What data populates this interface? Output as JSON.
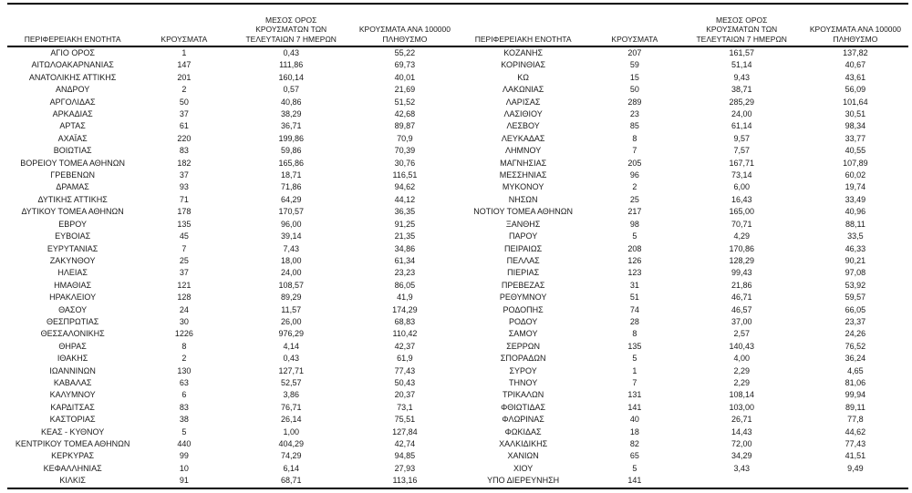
{
  "page": {
    "background": "#ffffff",
    "text_color": "#1a1a1a",
    "border_color": "#000000"
  },
  "table": {
    "headers": {
      "region": "ΠΕΡΙΦΕΡΕΙΑΚΗ ΕΝΟΤΗΤΑ",
      "cases": "ΚΡΟΥΣΜΑΤΑ",
      "avg7_full": "ΜΕΣΟΣ ΟΡΟΣ ΚΡΟΥΣΜΑΤΩΝ ΤΩΝ ΤΕΛΕΥΤΑΙΩΝ 7 ΗΜΕΡΩΝ",
      "avg7_lines": [
        "ΜΕΣΟΣ ΟΡΟΣ",
        "ΚΡΟΥΣΜΑΤΩΝ ΤΩΝ",
        "ΤΕΛΕΥΤΑΙΩΝ 7 ΗΜΕΡΩΝ"
      ],
      "per100k_full": "ΚΡΟΥΣΜΑΤΑ ΑΝΑ 100000 ΠΛΗΘΥΣΜΟ",
      "per100k_lines": [
        "ΚΡΟΥΣΜΑΤΑ ΑΝΑ 100000",
        "ΠΛΗΘΥΣΜΟ"
      ]
    },
    "left_rows": [
      [
        "ΑΓΙΟ ΟΡΟΣ",
        "1",
        "0,43",
        "55,22"
      ],
      [
        "ΑΙΤΩΛΟΑΚΑΡΝΑΝΙΑΣ",
        "147",
        "111,86",
        "69,73"
      ],
      [
        "ΑΝΑΤΟΛΙΚΗΣ ΑΤΤΙΚΗΣ",
        "201",
        "160,14",
        "40,01"
      ],
      [
        "ΑΝΔΡΟΥ",
        "2",
        "0,57",
        "21,69"
      ],
      [
        "ΑΡΓΟΛΙΔΑΣ",
        "50",
        "40,86",
        "51,52"
      ],
      [
        "ΑΡΚΑΔΙΑΣ",
        "37",
        "38,29",
        "42,68"
      ],
      [
        "ΑΡΤΑΣ",
        "61",
        "36,71",
        "89,87"
      ],
      [
        "ΑΧΑΪΑΣ",
        "220",
        "199,86",
        "70,9"
      ],
      [
        "ΒΟΙΩΤΙΑΣ",
        "83",
        "59,86",
        "70,39"
      ],
      [
        "ΒΟΡΕΙΟΥ ΤΟΜΕΑ ΑΘΗΝΩΝ",
        "182",
        "165,86",
        "30,76"
      ],
      [
        "ΓΡΕΒΕΝΩΝ",
        "37",
        "18,71",
        "116,51"
      ],
      [
        "ΔΡΑΜΑΣ",
        "93",
        "71,86",
        "94,62"
      ],
      [
        "ΔΥΤΙΚΗΣ ΑΤΤΙΚΗΣ",
        "71",
        "64,29",
        "44,12"
      ],
      [
        "ΔΥΤΙΚΟΥ ΤΟΜΕΑ ΑΘΗΝΩΝ",
        "178",
        "170,57",
        "36,35"
      ],
      [
        "ΕΒΡΟΥ",
        "135",
        "96,00",
        "91,25"
      ],
      [
        "ΕΥΒΟΙΑΣ",
        "45",
        "39,14",
        "21,35"
      ],
      [
        "ΕΥΡΥΤΑΝΙΑΣ",
        "7",
        "7,43",
        "34,86"
      ],
      [
        "ΖΑΚΥΝΘΟΥ",
        "25",
        "18,00",
        "61,34"
      ],
      [
        "ΗΛΕΙΑΣ",
        "37",
        "24,00",
        "23,23"
      ],
      [
        "ΗΜΑΘΙΑΣ",
        "121",
        "108,57",
        "86,05"
      ],
      [
        "ΗΡΑΚΛΕΙΟΥ",
        "128",
        "89,29",
        "41,9"
      ],
      [
        "ΘΑΣΟΥ",
        "24",
        "11,57",
        "174,29"
      ],
      [
        "ΘΕΣΠΡΩΤΙΑΣ",
        "30",
        "26,00",
        "68,83"
      ],
      [
        "ΘΕΣΣΑΛΟΝΙΚΗΣ",
        "1226",
        "976,29",
        "110,42"
      ],
      [
        "ΘΗΡΑΣ",
        "8",
        "4,14",
        "42,37"
      ],
      [
        "ΙΘΑΚΗΣ",
        "2",
        "0,43",
        "61,9"
      ],
      [
        "ΙΩΑΝΝΙΝΩΝ",
        "130",
        "127,71",
        "77,43"
      ],
      [
        "ΚΑΒΑΛΑΣ",
        "63",
        "52,57",
        "50,43"
      ],
      [
        "ΚΑΛΥΜΝΟΥ",
        "6",
        "3,86",
        "20,37"
      ],
      [
        "ΚΑΡΔΙΤΣΑΣ",
        "83",
        "76,71",
        "73,1"
      ],
      [
        "ΚΑΣΤΟΡΙΑΣ",
        "38",
        "26,14",
        "75,51"
      ],
      [
        "ΚΕΑΣ - ΚΥΘΝΟΥ",
        "5",
        "1,00",
        "127,84"
      ],
      [
        "ΚΕΝΤΡΙΚΟΥ ΤΟΜΕΑ ΑΘΗΝΩΝ",
        "440",
        "404,29",
        "42,74"
      ],
      [
        "ΚΕΡΚΥΡΑΣ",
        "99",
        "74,29",
        "94,85"
      ],
      [
        "ΚΕΦΑΛΛΗΝΙΑΣ",
        "10",
        "6,14",
        "27,93"
      ],
      [
        "ΚΙΛΚΙΣ",
        "91",
        "68,71",
        "113,16"
      ]
    ],
    "right_rows": [
      [
        "ΚΟΖΑΝΗΣ",
        "207",
        "161,57",
        "137,82"
      ],
      [
        "ΚΟΡΙΝΘΙΑΣ",
        "59",
        "51,14",
        "40,67"
      ],
      [
        "ΚΩ",
        "15",
        "9,43",
        "43,61"
      ],
      [
        "ΛΑΚΩΝΙΑΣ",
        "50",
        "38,71",
        "56,09"
      ],
      [
        "ΛΑΡΙΣΑΣ",
        "289",
        "285,29",
        "101,64"
      ],
      [
        "ΛΑΣΙΘΙΟΥ",
        "23",
        "24,00",
        "30,51"
      ],
      [
        "ΛΕΣΒΟΥ",
        "85",
        "61,14",
        "98,34"
      ],
      [
        "ΛΕΥΚΑΔΑΣ",
        "8",
        "9,57",
        "33,77"
      ],
      [
        "ΛΗΜΝΟΥ",
        "7",
        "7,57",
        "40,55"
      ],
      [
        "ΜΑΓΝΗΣΙΑΣ",
        "205",
        "167,71",
        "107,89"
      ],
      [
        "ΜΕΣΣΗΝΙΑΣ",
        "96",
        "73,14",
        "60,02"
      ],
      [
        "ΜΥΚΟΝΟΥ",
        "2",
        "6,00",
        "19,74"
      ],
      [
        "ΝΗΣΩΝ",
        "25",
        "16,43",
        "33,49"
      ],
      [
        "ΝΟΤΙΟΥ ΤΟΜΕΑ ΑΘΗΝΩΝ",
        "217",
        "165,00",
        "40,96"
      ],
      [
        "ΞΑΝΘΗΣ",
        "98",
        "70,71",
        "88,11"
      ],
      [
        "ΠΑΡΟΥ",
        "5",
        "4,29",
        "33,5"
      ],
      [
        "ΠΕΙΡΑΙΩΣ",
        "208",
        "170,86",
        "46,33"
      ],
      [
        "ΠΕΛΛΑΣ",
        "126",
        "128,29",
        "90,21"
      ],
      [
        "ΠΙΕΡΙΑΣ",
        "123",
        "99,43",
        "97,08"
      ],
      [
        "ΠΡΕΒΕΖΑΣ",
        "31",
        "21,86",
        "53,92"
      ],
      [
        "ΡΕΘΥΜΝΟΥ",
        "51",
        "46,71",
        "59,57"
      ],
      [
        "ΡΟΔΟΠΗΣ",
        "74",
        "46,57",
        "66,05"
      ],
      [
        "ΡΟΔΟΥ",
        "28",
        "37,00",
        "23,37"
      ],
      [
        "ΣΑΜΟΥ",
        "8",
        "2,57",
        "24,26"
      ],
      [
        "ΣΕΡΡΩΝ",
        "135",
        "140,43",
        "76,52"
      ],
      [
        "ΣΠΟΡΑΔΩΝ",
        "5",
        "4,00",
        "36,24"
      ],
      [
        "ΣΥΡΟΥ",
        "1",
        "2,29",
        "4,65"
      ],
      [
        "ΤΗΝΟΥ",
        "7",
        "2,29",
        "81,06"
      ],
      [
        "ΤΡΙΚΑΛΩΝ",
        "131",
        "108,14",
        "99,94"
      ],
      [
        "ΦΘΙΩΤΙΔΑΣ",
        "141",
        "103,00",
        "89,11"
      ],
      [
        "ΦΛΩΡΙΝΑΣ",
        "40",
        "26,71",
        "77,8"
      ],
      [
        "ΦΩΚΙΔΑΣ",
        "18",
        "14,43",
        "44,62"
      ],
      [
        "ΧΑΛΚΙΔΙΚΗΣ",
        "82",
        "72,00",
        "77,43"
      ],
      [
        "ΧΑΝΙΩΝ",
        "65",
        "34,29",
        "41,51"
      ],
      [
        "ΧΙΟΥ",
        "5",
        "3,43",
        "9,49"
      ],
      [
        "ΥΠΟ ΔΙΕΡΕΥΝΗΣΗ",
        "141",
        "",
        ""
      ]
    ]
  }
}
